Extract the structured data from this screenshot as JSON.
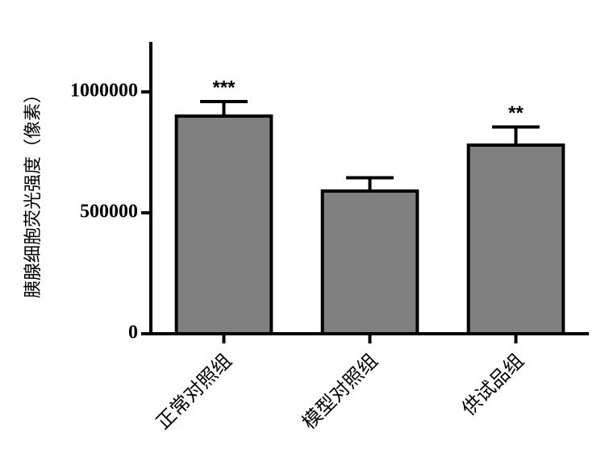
{
  "chart_data": {
    "type": "bar",
    "y_label": "胰腺细胞荧光强度（像素）",
    "categories": [
      "正常对照组",
      "模型对照组",
      "供试品组"
    ],
    "values": [
      900000,
      590000,
      780000
    ],
    "errors": [
      60000,
      55000,
      75000
    ],
    "annotations": [
      "***",
      null,
      "**"
    ],
    "color": "#808080",
    "ylim": [
      0,
      1200000
    ],
    "yticks": [
      0,
      500000,
      1000000
    ],
    "grid": false
  }
}
